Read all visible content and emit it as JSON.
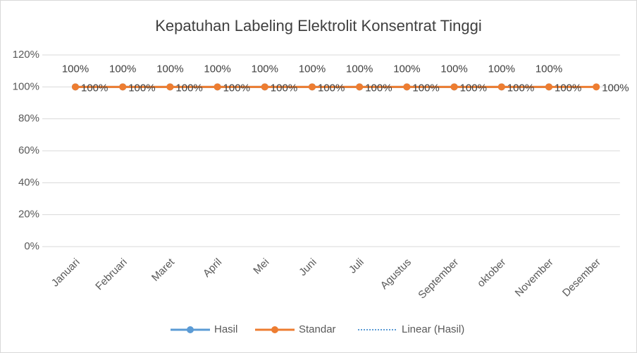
{
  "chart_data": {
    "type": "line",
    "title": "Kepatuhan Labeling Elektrolit Konsentrat Tinggi",
    "categories": [
      "Januari",
      "Februari",
      "Maret",
      "April",
      "Mei",
      "Juni",
      "Juli",
      "Agustus",
      "September",
      "oktober",
      "November",
      "Desember"
    ],
    "series": [
      {
        "name": "Hasil",
        "color": "#5b9bd5",
        "values": [
          100,
          100,
          100,
          100,
          100,
          100,
          100,
          100,
          100,
          100,
          100,
          null
        ],
        "value_labels": [
          "100%",
          "100%",
          "100%",
          "100%",
          "100%",
          "100%",
          "100%",
          "100%",
          "100%",
          "100%",
          "100%",
          null
        ]
      },
      {
        "name": "Standar",
        "color": "#ed7d31",
        "values": [
          100,
          100,
          100,
          100,
          100,
          100,
          100,
          100,
          100,
          100,
          100,
          100
        ],
        "value_labels": [
          "100%",
          "100%",
          "100%",
          "100%",
          "100%",
          "100%",
          "100%",
          "100%",
          "100%",
          "100%",
          "100%",
          "100%"
        ]
      }
    ],
    "trendline": {
      "name": "Linear (Hasil)",
      "series": 0,
      "color": "#5b9bd5"
    },
    "ylim": [
      0,
      120
    ],
    "yticks": [
      {
        "value": 0,
        "label": "0%"
      },
      {
        "value": 20,
        "label": "20%"
      },
      {
        "value": 40,
        "label": "40%"
      },
      {
        "value": 60,
        "label": "60%"
      },
      {
        "value": 80,
        "label": "80%"
      },
      {
        "value": 100,
        "label": "100%"
      },
      {
        "value": 120,
        "label": "120%"
      }
    ],
    "grid": true,
    "legend": "bottom"
  }
}
